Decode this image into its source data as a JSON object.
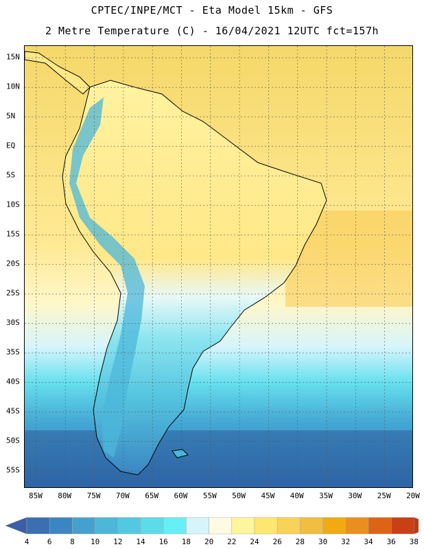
{
  "header": {
    "line1": "CPTEC/INPE/MCT -  Eta Model 15km - GFS",
    "line2": "2 Metre Temperature (C) - 16/04/2021 12UTC fct=157h"
  },
  "map": {
    "lat_labels": [
      {
        "lat": 15,
        "text": "15N"
      },
      {
        "lat": 10,
        "text": "10N"
      },
      {
        "lat": 5,
        "text": "5N"
      },
      {
        "lat": 0,
        "text": "EQ"
      },
      {
        "lat": -5,
        "text": "5S"
      },
      {
        "lat": -10,
        "text": "10S"
      },
      {
        "lat": -15,
        "text": "15S"
      },
      {
        "lat": -20,
        "text": "20S"
      },
      {
        "lat": -25,
        "text": "25S"
      },
      {
        "lat": -30,
        "text": "30S"
      },
      {
        "lat": -35,
        "text": "35S"
      },
      {
        "lat": -40,
        "text": "40S"
      },
      {
        "lat": -45,
        "text": "45S"
      },
      {
        "lat": -50,
        "text": "50S"
      },
      {
        "lat": -55,
        "text": "55S"
      }
    ],
    "lon_labels": [
      {
        "lon": -85,
        "text": "85W"
      },
      {
        "lon": -80,
        "text": "80W"
      },
      {
        "lon": -75,
        "text": "75W"
      },
      {
        "lon": -70,
        "text": "70W"
      },
      {
        "lon": -65,
        "text": "65W"
      },
      {
        "lon": -60,
        "text": "60W"
      },
      {
        "lon": -55,
        "text": "55W"
      },
      {
        "lon": -50,
        "text": "50W"
      },
      {
        "lon": -45,
        "text": "45W"
      },
      {
        "lon": -40,
        "text": "40W"
      },
      {
        "lon": -35,
        "text": "35W"
      },
      {
        "lon": -30,
        "text": "30W"
      },
      {
        "lon": -25,
        "text": "25W"
      },
      {
        "lon": -20,
        "text": "20W"
      }
    ]
  },
  "colorbar": {
    "labels": [
      "4",
      "6",
      "8",
      "10",
      "12",
      "14",
      "16",
      "18",
      "20",
      "22",
      "24",
      "26",
      "28",
      "30",
      "32",
      "34",
      "36",
      "38"
    ],
    "colors": [
      "#3a6fb2",
      "#3a86c2",
      "#44a0cc",
      "#4cb7d9",
      "#52c9e0",
      "#5cdbe8",
      "#66f0f5",
      "#d6f5fb",
      "#fffbe3",
      "#fff59a",
      "#ffe66e",
      "#f9d25a",
      "#f2be40",
      "#f2aa12",
      "#ea8f1e",
      "#dd6415",
      "#c94015"
    ],
    "low_arrow_color": "#3a5fa8",
    "high_arrow_color": "#bf3a10"
  }
}
